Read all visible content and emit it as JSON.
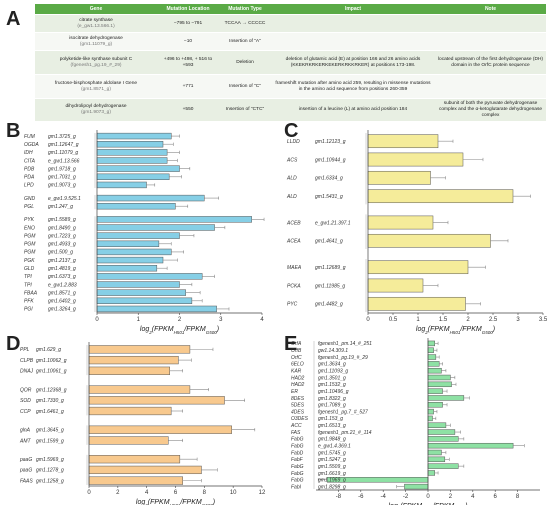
{
  "panels": {
    "A": "A",
    "B": "B",
    "C": "C",
    "D": "D",
    "E": "E"
  },
  "table": {
    "headers": [
      "Gene",
      "Mutation Location",
      "Mutation Type",
      "Impact",
      "Note"
    ],
    "rows": [
      {
        "gene": "citrate synthase",
        "gene_id": "(e_gw1.13.566.1)",
        "location": "−795 to −791",
        "type": "TCCAA → CCCCC",
        "impact": "",
        "note": ""
      },
      {
        "gene": "isocitrate dehydrogenase",
        "gene_id": "(gm1.11079_g)",
        "location": "−10",
        "type": "Insertion of \"A\"",
        "impact": "",
        "note": ""
      },
      {
        "gene": "polyketide-like synthase subunit C",
        "gene_id": "(fgenesh1_pg.19_#_29)",
        "location": "+496 to +498, + 516 to +593",
        "type": "Deletion",
        "impact": "deletion of glutamic acid (E) at position 166 and 26 amino acids (KKEKRKRKERKEKERKRKKRKER) at positions 173-198.",
        "note": "located upstream of the first dehydrogenase (DH) domain in the OrfC protein sequence"
      },
      {
        "gene": "fructose-bisphosphate aldolase I Gene",
        "gene_id": "(gm1.8571_g)",
        "location": "+771",
        "type": "Insertion of \"C\"",
        "impact": "frameshift mutation after amino acid 259, resulting in missense mutations in the amino acid sequence from positions 260-359",
        "note": ""
      },
      {
        "gene": "dihydrolipoyl dehydrogenase",
        "gene_id": "(gm1.9073_g)",
        "location": "+550",
        "type": "Insertion of \"CTC\"",
        "impact": "insertion of a leucine (L) at amino acid position 184",
        "note": "subunit of both the pyruvate dehydrogenase complex and the α-ketoglutarate dehydrogenase complex"
      }
    ]
  },
  "chart_data": [
    {
      "panel": "B",
      "type": "bar",
      "orientation": "horizontal",
      "color": "#86cfe6",
      "xlim": [
        0,
        4
      ],
      "xticks": [
        0,
        1,
        2,
        3,
        4
      ],
      "xlabel": "log2(FPKM_H501/FPKM_G500)",
      "categories": [
        {
          "name": "FUM",
          "gene": "gm1.3725_g"
        },
        {
          "name": "OGDA",
          "gene": "gm1.12647_g"
        },
        {
          "name": "IDH",
          "gene": "gm1.11079_g"
        },
        {
          "name": "CITA",
          "gene": "e_gw1.13.566"
        },
        {
          "name": "PDB",
          "gene": "gm1.9718_g"
        },
        {
          "name": "PDA",
          "gene": "gm1.7031_g"
        },
        {
          "name": "LPD",
          "gene": "gm1.9073_g"
        },
        {
          "name": "GND",
          "gene": "e_gw1.9.525.1"
        },
        {
          "name": "PGL",
          "gene": "gm1.247_g"
        },
        {
          "name": "PYK",
          "gene": "gm1.5589_g"
        },
        {
          "name": "ENO",
          "gene": "gm1.8490_g"
        },
        {
          "name": "PGM",
          "gene": "gm1.7223_g"
        },
        {
          "name": "PGM",
          "gene": "gm1.4933_g"
        },
        {
          "name": "PGM",
          "gene": "gm1.500_g"
        },
        {
          "name": "PGK",
          "gene": "gm1.2137_g"
        },
        {
          "name": "GLD",
          "gene": "gm1.4819_g"
        },
        {
          "name": "TPI",
          "gene": "gm1.6373_g"
        },
        {
          "name": "TPI",
          "gene": "e_gw1.2.883"
        },
        {
          "name": "FBAA",
          "gene": "gm1.8571_g"
        },
        {
          "name": "PFK",
          "gene": "gm1.6402_g"
        },
        {
          "name": "PGI",
          "gene": "gm1.3264_g"
        }
      ],
      "groups": [
        7,
        2,
        12
      ],
      "values": [
        1.8,
        1.6,
        1.7,
        1.7,
        2.0,
        1.75,
        1.2,
        2.6,
        1.9,
        3.75,
        2.85,
        2.0,
        1.5,
        1.8,
        1.6,
        1.45,
        2.55,
        2.0,
        2.15,
        2.3,
        2.9
      ],
      "errors": [
        0.2,
        0.25,
        0.3,
        0.25,
        0.25,
        0.3,
        0.2,
        0.35,
        0.3,
        0.3,
        0.25,
        0.35,
        0.3,
        0.3,
        0.35,
        0.25,
        0.3,
        0.3,
        0.35,
        0.25,
        0.3
      ]
    },
    {
      "panel": "C",
      "type": "bar",
      "orientation": "horizontal",
      "color": "#f5ec9a",
      "xlim": [
        0,
        3.5
      ],
      "xticks": [
        0,
        0.5,
        1,
        1.5,
        2,
        2.5,
        3,
        3.5
      ],
      "xlabel": "log2(FPKM_H501/FPKM_G500)",
      "categories": [
        {
          "name": "LLDD",
          "gene": "gm1.12123_g"
        },
        {
          "name": "ACS",
          "gene": "gm1.10944_g"
        },
        {
          "name": "ALD",
          "gene": "gm1.6334_g"
        },
        {
          "name": "ALD",
          "gene": "gm1.5431_g"
        },
        {
          "name": "ACEB",
          "gene": "e_gw1.21.397.1"
        },
        {
          "name": "ACEA",
          "gene": "gm1.4641_g"
        },
        {
          "name": "MAEA",
          "gene": "gm1.12689_g"
        },
        {
          "name": "PCKA",
          "gene": "gm1.11985_g"
        },
        {
          "name": "PYC",
          "gene": "gm1.4482_g"
        }
      ],
      "groups": [
        4,
        2,
        3
      ],
      "values": [
        1.4,
        1.9,
        1.25,
        2.9,
        1.3,
        2.45,
        2.0,
        1.1,
        1.95
      ],
      "errors": [
        0.3,
        0.4,
        0.3,
        0.35,
        0.3,
        0.35,
        0.35,
        0.3,
        0.3
      ]
    },
    {
      "panel": "D",
      "type": "bar",
      "orientation": "horizontal",
      "color": "#f8c98e",
      "xlim": [
        0,
        12
      ],
      "xticks": [
        0,
        2,
        4,
        6,
        8,
        10,
        12
      ],
      "xlabel": "log2(FPKM_H501/FPKM_G500)",
      "categories": [
        {
          "name": "PPL",
          "gene": "gm1.629_g"
        },
        {
          "name": "CLPB",
          "gene": "gm1.10062_g"
        },
        {
          "name": "DNAJ",
          "gene": "gm1.10061_g"
        },
        {
          "name": "QOR",
          "gene": "gm1.12368_g"
        },
        {
          "name": "SOD",
          "gene": "gm1.7330_g"
        },
        {
          "name": "CCP",
          "gene": "gm1.6461_g"
        },
        {
          "name": "glnA",
          "gene": "gm1.3645_g"
        },
        {
          "name": "AMT",
          "gene": "gm1.1599_g"
        },
        {
          "name": "paaG",
          "gene": "gm1.5969_g"
        },
        {
          "name": "paaG",
          "gene": "gm1.1278_g"
        },
        {
          "name": "FAAS",
          "gene": "gm1.1258_g"
        }
      ],
      "groups": [
        3,
        3,
        2,
        3
      ],
      "values": [
        7.0,
        6.2,
        5.6,
        7.0,
        9.4,
        5.7,
        9.9,
        5.5,
        6.3,
        7.8,
        6.5
      ],
      "errors": [
        1.6,
        0.9,
        0.9,
        1.3,
        1.4,
        0.8,
        1.6,
        1.0,
        1.2,
        1.1,
        1.3
      ]
    },
    {
      "panel": "E",
      "type": "bar",
      "orientation": "horizontal",
      "color": "#8ee1a4",
      "xlim": [
        -10,
        10
      ],
      "xticks": [
        -8,
        -6,
        -4,
        -2,
        0,
        2,
        4,
        6,
        8
      ],
      "xlabel": "log2(FPKM_H501/FPKM_G500)",
      "categories": [
        {
          "name": "OrfA",
          "gene": "fgenesh1_pm.14_#_251"
        },
        {
          "name": "OrfB",
          "gene": "gw1.14.309.1"
        },
        {
          "name": "OrfC",
          "gene": "fgenesh1_pg.19_#_29"
        },
        {
          "name": "6ELO",
          "gene": "gm1.3634_g"
        },
        {
          "name": "KAR",
          "gene": "gm1.11093_g"
        },
        {
          "name": "HAD2",
          "gene": "gm1.3501_g"
        },
        {
          "name": "HAD2",
          "gene": "gm1.1532_g"
        },
        {
          "name": "ER",
          "gene": "gm1.10496_g"
        },
        {
          "name": "8DES",
          "gene": "gm1.8322_g"
        },
        {
          "name": "5DES",
          "gene": "gm1.7089_g"
        },
        {
          "name": "4DES",
          "gene": "fgenesh1_pg.7_#_527"
        },
        {
          "name": "O3DES",
          "gene": "gm1.153_g"
        },
        {
          "name": "ACC",
          "gene": "gm1.6513_g"
        },
        {
          "name": "FAS",
          "gene": "fgenesh1_pm.21_#_114"
        },
        {
          "name": "FabG",
          "gene": "gm1.9848_g"
        },
        {
          "name": "FabG",
          "gene": "e_gw1.4.369.1"
        },
        {
          "name": "FabD",
          "gene": "gm1.5745_g"
        },
        {
          "name": "FabF",
          "gene": "gm1.5247_g"
        },
        {
          "name": "FabG",
          "gene": "gm1.5509_g"
        },
        {
          "name": "FabG",
          "gene": "gm1.6619_g"
        },
        {
          "name": "FabG",
          "gene": "gm1.1969_g"
        },
        {
          "name": "FabI",
          "gene": "gm1.8298_g"
        }
      ],
      "groups": [
        22
      ],
      "values": [
        0.6,
        0.5,
        0.7,
        1.0,
        1.2,
        2.0,
        2.1,
        1.3,
        3.2,
        1.3,
        0.5,
        0.4,
        1.6,
        2.4,
        2.7,
        7.6,
        1.2,
        1.5,
        2.7,
        0.6,
        -9.0,
        -2.1
      ],
      "errors": [
        0.3,
        0.3,
        0.3,
        0.3,
        0.4,
        0.4,
        0.4,
        0.4,
        0.5,
        0.4,
        0.3,
        0.3,
        0.4,
        0.5,
        0.5,
        1.0,
        0.4,
        0.4,
        0.5,
        0.3,
        0.8,
        0.7
      ]
    }
  ]
}
